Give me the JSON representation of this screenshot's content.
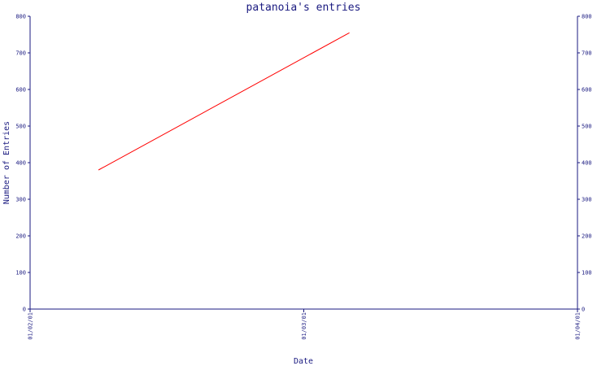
{
  "chart_data": {
    "type": "line",
    "title": "patanoia's entries",
    "xlabel": "Date",
    "ylabel": "Number of Entries",
    "x_ticks": [
      "01/02/01",
      "01/03/01",
      "01/04/01"
    ],
    "y_ticks": [
      0,
      100,
      200,
      300,
      400,
      500,
      600,
      700,
      800
    ],
    "ylim": [
      0,
      800
    ],
    "xlim": [
      "2001-01-02",
      "2001-01-04"
    ],
    "grid": false,
    "legend": "none",
    "series": [
      {
        "color": "#ff0000",
        "points": [
          {
            "x": "2001-01-02T06:00",
            "y": 380
          },
          {
            "x": "2001-01-03T04:00",
            "y": 755
          }
        ]
      }
    ]
  }
}
